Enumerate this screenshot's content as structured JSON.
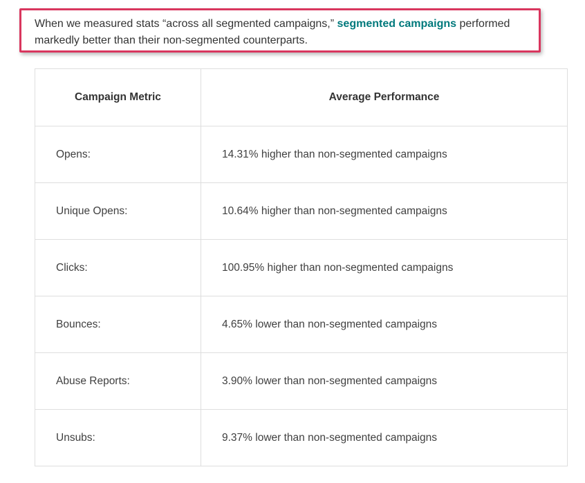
{
  "intro": {
    "text_before": "When we measured stats “across all segmented campaigns,” ",
    "link_text": "segmented campaigns",
    "text_after": " performed markedly better than their non-segmented counterparts."
  },
  "table": {
    "headers": [
      "Campaign Metric",
      "Average Performance"
    ],
    "rows": [
      {
        "metric": "Opens:",
        "performance": "14.31% higher than non-segmented campaigns"
      },
      {
        "metric": "Unique Opens:",
        "performance": "10.64% higher than non-segmented campaigns"
      },
      {
        "metric": "Clicks:",
        "performance": "100.95% higher than non-segmented campaigns"
      },
      {
        "metric": "Bounces:",
        "performance": "4.65% lower than non-segmented campaigns"
      },
      {
        "metric": "Abuse Reports:",
        "performance": "3.90% lower than non-segmented campaigns"
      },
      {
        "metric": "Unsubs:",
        "performance": "9.37% lower than non-segmented campaigns"
      }
    ]
  },
  "colors": {
    "highlight_border": "#d9365e",
    "link": "#00797c"
  }
}
